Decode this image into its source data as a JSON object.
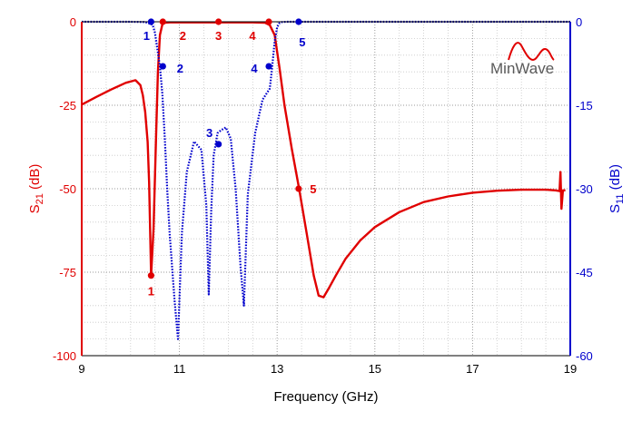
{
  "chart_data": {
    "type": "line",
    "xlabel": "Frequency (GHz)",
    "ylabel_left": {
      "main": "S",
      "sub": "21",
      "unit": " (dB)"
    },
    "ylabel_right": {
      "main": "S",
      "sub": "11",
      "unit": " (dB)"
    },
    "xlim": [
      9,
      19
    ],
    "ylim_left": [
      -100,
      0
    ],
    "ylim_right": [
      -60,
      0
    ],
    "x_ticks": [
      9,
      11,
      13,
      15,
      17,
      19
    ],
    "y_ticks_left": [
      0,
      -25,
      -50,
      -75,
      -100
    ],
    "y_ticks_right": [
      0,
      -15,
      -30,
      -45,
      -60
    ],
    "grid": true,
    "grid_minor": true,
    "colors": {
      "s21": "#e00000",
      "s11": "#0000cc"
    },
    "series": [
      {
        "axis": "left",
        "style": "solid",
        "x": [
          9.0,
          9.3,
          9.6,
          9.9,
          10.1,
          10.2,
          10.25,
          10.3,
          10.35,
          10.38,
          10.42,
          10.47,
          10.52,
          10.56,
          10.6,
          10.65,
          10.7,
          10.8,
          11.0,
          11.5,
          12.0,
          12.5,
          12.75,
          12.85,
          12.95,
          13.05,
          13.15,
          13.3,
          13.45,
          13.6,
          13.75,
          13.85,
          13.95,
          14.05,
          14.2,
          14.4,
          14.7,
          15.0,
          15.5,
          16.0,
          16.5,
          17.0,
          17.5,
          18.0,
          18.5,
          18.7,
          18.78,
          18.8,
          18.82,
          18.85,
          18.9
        ],
        "y": [
          -24.8,
          -22.5,
          -20.3,
          -18.3,
          -17.5,
          -19.0,
          -22.0,
          -27.0,
          -36.0,
          -48.0,
          -76.0,
          -62.0,
          -35.0,
          -15.0,
          -4.0,
          -0.8,
          -0.3,
          -0.2,
          -0.2,
          -0.2,
          -0.2,
          -0.2,
          -0.3,
          -1.0,
          -4.0,
          -14.0,
          -25.0,
          -38.0,
          -50.0,
          -63.0,
          -76.0,
          -82.0,
          -82.5,
          -80.0,
          -76.0,
          -71.0,
          -65.5,
          -61.5,
          -57.0,
          -54.0,
          -52.3,
          -51.2,
          -50.6,
          -50.3,
          -50.3,
          -50.5,
          -50.7,
          -45.0,
          -56.0,
          -50.5,
          -50.5
        ]
      },
      {
        "axis": "right",
        "style": "dotted",
        "x": [
          9.0,
          9.5,
          10.0,
          10.3,
          10.45,
          10.5,
          10.55,
          10.6,
          10.65,
          10.7,
          10.75,
          10.8,
          10.9,
          10.97,
          11.05,
          11.15,
          11.3,
          11.45,
          11.55,
          11.6,
          11.65,
          11.7,
          11.78,
          11.85,
          11.95,
          12.05,
          12.15,
          12.25,
          12.32,
          12.4,
          12.55,
          12.7,
          12.85,
          12.9,
          12.95,
          13.0,
          13.05,
          13.1,
          13.2,
          13.4,
          14.0,
          15.0,
          16.0,
          17.0,
          18.0,
          19.0
        ],
        "y": [
          0,
          0,
          0,
          -0.05,
          -0.5,
          -2.0,
          -5.0,
          -8.0,
          -13.0,
          -21.0,
          -30.0,
          -38.0,
          -50.0,
          -57.0,
          -38.0,
          -27.0,
          -21.5,
          -23.0,
          -33.0,
          -49.0,
          -34.0,
          -24.0,
          -20.0,
          -19.5,
          -19.0,
          -21.0,
          -30.0,
          -44.0,
          -51.0,
          -31.0,
          -20.0,
          -14.0,
          -12.0,
          -8.0,
          -3.5,
          -1.0,
          -0.2,
          -0.05,
          0,
          0,
          0,
          0,
          0,
          0,
          0,
          0
        ]
      }
    ],
    "markers": [
      {
        "label": "1",
        "series": 0,
        "x": 10.42,
        "y": -76.0
      },
      {
        "label": "2",
        "series": 0,
        "x": 10.66,
        "y": 0
      },
      {
        "label": "3",
        "series": 0,
        "x": 11.8,
        "y": 0
      },
      {
        "label": "4",
        "series": 0,
        "x": 12.83,
        "y": 0
      },
      {
        "label": "5",
        "series": 0,
        "x": 13.44,
        "y": -50.0
      },
      {
        "label": "1",
        "series": 1,
        "x": 10.42,
        "y": 0
      },
      {
        "label": "2",
        "series": 1,
        "x": 10.66,
        "y": -8.0
      },
      {
        "label": "3",
        "series": 1,
        "x": 11.8,
        "y": -22.0
      },
      {
        "label": "4",
        "series": 1,
        "x": 12.83,
        "y": -8.0
      },
      {
        "label": "5",
        "series": 1,
        "x": 13.44,
        "y": 0
      }
    ]
  },
  "logo": {
    "text": "MinWave"
  }
}
